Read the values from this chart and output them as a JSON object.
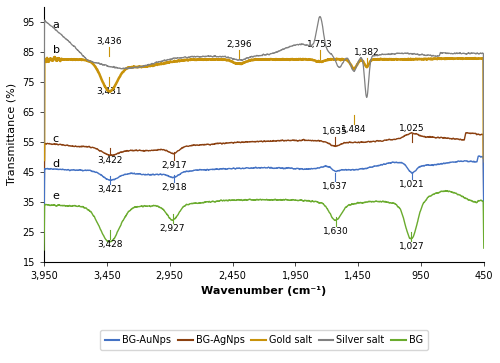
{
  "title": "",
  "xlabel": "Wavenumber (cm⁻¹)",
  "ylabel": "Transmittance (%)",
  "xlim": [
    3950,
    450
  ],
  "ylim": [
    15,
    100
  ],
  "yticks": [
    15,
    25,
    35,
    45,
    55,
    65,
    75,
    85,
    95
  ],
  "xticks": [
    3950,
    3450,
    2950,
    2450,
    1950,
    1450,
    950,
    450
  ],
  "colors": {
    "silver_salt": "#808080",
    "gold_salt": "#C8920A",
    "BG_AgNps": "#8B4010",
    "BG_AuNps": "#4472C4",
    "BG": "#6AAB2E"
  },
  "legend": [
    {
      "label": "BG-AuNps",
      "color": "#4472C4"
    },
    {
      "label": "BG-AgNps",
      "color": "#8B4010"
    },
    {
      "label": "Gold salt",
      "color": "#C8920A"
    },
    {
      "label": "Silver salt",
      "color": "#808080"
    },
    {
      "label": "BG",
      "color": "#6AAB2E"
    }
  ]
}
